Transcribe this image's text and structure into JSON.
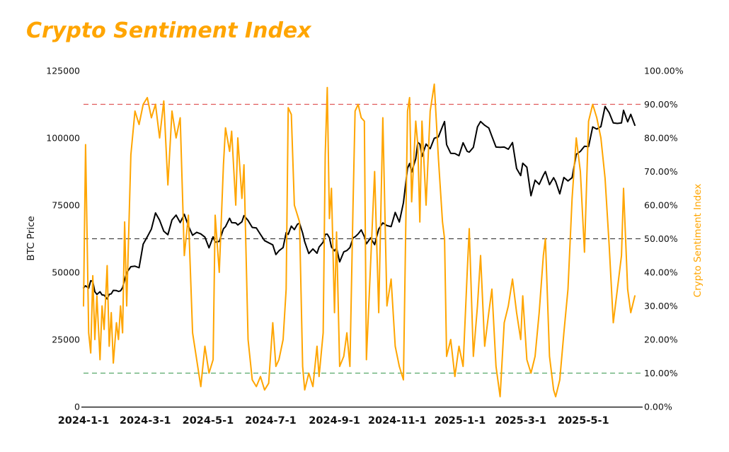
{
  "title": "Crypto Sentiment Index",
  "colors": {
    "title": "#FFA500",
    "price_line": "#000000",
    "sentiment_line": "#FFA500",
    "ref_90": "#e05a5a",
    "ref_50": "#444444",
    "ref_10": "#55a868",
    "axis_line": "#000000",
    "tick_text": "#111111"
  },
  "chart_data": {
    "type": "line",
    "title": "Crypto Sentiment Index",
    "legend": "none",
    "grid": false,
    "columns": [
      "date",
      "btc_price_usd",
      "sentiment_pct"
    ],
    "y_left": {
      "label": "BTC Price",
      "range": [
        0,
        125000
      ],
      "ticks": [
        0,
        25000,
        50000,
        75000,
        100000,
        125000
      ],
      "tick_labels": [
        "0",
        "25000",
        "50000",
        "75000",
        "100000",
        "125000"
      ]
    },
    "y_right": {
      "label": "Crypto Sentiment Index",
      "range": [
        0,
        100
      ],
      "ticks": [
        0,
        10,
        20,
        30,
        40,
        50,
        60,
        70,
        80,
        90,
        100
      ],
      "tick_labels": [
        "0.00%",
        "10.00%",
        "20.00%",
        "30.00%",
        "40.00%",
        "50.00%",
        "60.00%",
        "70.00%",
        "80.00%",
        "90.00%",
        "100.00%"
      ]
    },
    "x_ticks": {
      "dates": [
        "2024-01-01",
        "2024-03-01",
        "2024-05-01",
        "2024-07-01",
        "2024-09-01",
        "2024-11-01",
        "2025-01-01",
        "2025-03-01",
        "2025-05-01"
      ],
      "labels": [
        "2024-1-1",
        "2024-3-1",
        "2024-5-1",
        "2024-7-1",
        "2024-9-1",
        "2024-11-1",
        "2025-1-1",
        "2025-3-1",
        "2025-5-1"
      ]
    },
    "reference_lines": [
      {
        "axis": "right",
        "value": 90,
        "color": "#e05a5a",
        "style": "dashed"
      },
      {
        "axis": "right",
        "value": 50,
        "color": "#444444",
        "style": "dashed"
      },
      {
        "axis": "right",
        "value": 10,
        "color": "#55a868",
        "style": "dashed"
      }
    ],
    "series_meta": [
      {
        "name": "BTC Price",
        "axis": "left",
        "color": "#000000",
        "column": 1
      },
      {
        "name": "Crypto Sentiment Index",
        "axis": "right",
        "color": "#FFA500",
        "column": 2
      }
    ],
    "points": [
      [
        "2024-01-01",
        44200,
        30
      ],
      [
        "2024-01-03",
        45000,
        78
      ],
      [
        "2024-01-06",
        44100,
        22
      ],
      [
        "2024-01-08",
        46900,
        16
      ],
      [
        "2024-01-10",
        46600,
        39
      ],
      [
        "2024-01-12",
        42800,
        20
      ],
      [
        "2024-01-14",
        41800,
        33
      ],
      [
        "2024-01-17",
        42800,
        14
      ],
      [
        "2024-01-19",
        41600,
        30
      ],
      [
        "2024-01-21",
        41500,
        23
      ],
      [
        "2024-01-24",
        40100,
        42
      ],
      [
        "2024-01-26",
        41800,
        18
      ],
      [
        "2024-01-28",
        42000,
        28
      ],
      [
        "2024-01-30",
        43300,
        13
      ],
      [
        "2024-02-02",
        43200,
        25
      ],
      [
        "2024-02-04",
        42900,
        20
      ],
      [
        "2024-02-06",
        43100,
        30
      ],
      [
        "2024-02-08",
        44300,
        22
      ],
      [
        "2024-02-10",
        47200,
        55
      ],
      [
        "2024-02-12",
        49900,
        30
      ],
      [
        "2024-02-16",
        52100,
        75
      ],
      [
        "2024-02-20",
        52300,
        88
      ],
      [
        "2024-02-24",
        51700,
        84
      ],
      [
        "2024-02-28",
        60500,
        90
      ],
      [
        "2024-03-03",
        63200,
        92
      ],
      [
        "2024-03-07",
        66100,
        86
      ],
      [
        "2024-03-11",
        72100,
        90
      ],
      [
        "2024-03-15",
        69400,
        80
      ],
      [
        "2024-03-19",
        65300,
        91
      ],
      [
        "2024-03-23",
        64000,
        66
      ],
      [
        "2024-03-27",
        69500,
        88
      ],
      [
        "2024-03-31",
        71300,
        80
      ],
      [
        "2024-04-04",
        68500,
        86
      ],
      [
        "2024-04-08",
        71600,
        45
      ],
      [
        "2024-04-12",
        67200,
        57
      ],
      [
        "2024-04-16",
        63800,
        22
      ],
      [
        "2024-04-20",
        64900,
        14
      ],
      [
        "2024-04-24",
        64300,
        6
      ],
      [
        "2024-04-28",
        63100,
        18
      ],
      [
        "2024-05-02",
        59100,
        10
      ],
      [
        "2024-05-06",
        63200,
        14
      ],
      [
        "2024-05-08",
        61200,
        57
      ],
      [
        "2024-05-12",
        61500,
        40
      ],
      [
        "2024-05-16",
        66200,
        72
      ],
      [
        "2024-05-18",
        67000,
        83
      ],
      [
        "2024-05-22",
        70100,
        76
      ],
      [
        "2024-05-24",
        68500,
        82
      ],
      [
        "2024-05-28",
        68400,
        60
      ],
      [
        "2024-05-30",
        67600,
        80
      ],
      [
        "2024-06-03",
        68800,
        62
      ],
      [
        "2024-06-05",
        71100,
        72
      ],
      [
        "2024-06-09",
        69300,
        20
      ],
      [
        "2024-06-13",
        66700,
        8
      ],
      [
        "2024-06-17",
        66500,
        6
      ],
      [
        "2024-06-21",
        64100,
        9
      ],
      [
        "2024-06-25",
        61800,
        5
      ],
      [
        "2024-06-29",
        61000,
        7
      ],
      [
        "2024-07-03",
        60200,
        25
      ],
      [
        "2024-07-06",
        56600,
        12
      ],
      [
        "2024-07-09",
        58000,
        14
      ],
      [
        "2024-07-13",
        59200,
        20
      ],
      [
        "2024-07-16",
        64800,
        35
      ],
      [
        "2024-07-18",
        64100,
        89
      ],
      [
        "2024-07-21",
        67200,
        87
      ],
      [
        "2024-07-24",
        65900,
        60
      ],
      [
        "2024-07-27",
        67900,
        57
      ],
      [
        "2024-07-29",
        68300,
        55
      ],
      [
        "2024-08-01",
        64600,
        12
      ],
      [
        "2024-08-03",
        61400,
        5
      ],
      [
        "2024-08-07",
        57000,
        10
      ],
      [
        "2024-08-11",
        58700,
        6
      ],
      [
        "2024-08-15",
        57100,
        18
      ],
      [
        "2024-08-17",
        59400,
        9
      ],
      [
        "2024-08-21",
        61200,
        22
      ],
      [
        "2024-08-23",
        64100,
        75
      ],
      [
        "2024-08-25",
        64200,
        95
      ],
      [
        "2024-08-27",
        62900,
        56
      ],
      [
        "2024-08-29",
        59400,
        65
      ],
      [
        "2024-09-01",
        58000,
        28
      ],
      [
        "2024-09-03",
        59100,
        52
      ],
      [
        "2024-09-06",
        53900,
        12
      ],
      [
        "2024-09-10",
        57600,
        15
      ],
      [
        "2024-09-13",
        58100,
        22
      ],
      [
        "2024-09-16",
        59200,
        12
      ],
      [
        "2024-09-19",
        62800,
        60
      ],
      [
        "2024-09-21",
        63200,
        88
      ],
      [
        "2024-09-24",
        64300,
        90
      ],
      [
        "2024-09-27",
        65800,
        86
      ],
      [
        "2024-09-30",
        63300,
        85
      ],
      [
        "2024-10-02",
        60600,
        14
      ],
      [
        "2024-10-06",
        62800,
        42
      ],
      [
        "2024-10-10",
        60300,
        70
      ],
      [
        "2024-10-14",
        66100,
        28
      ],
      [
        "2024-10-18",
        68400,
        86
      ],
      [
        "2024-10-22",
        67400,
        30
      ],
      [
        "2024-10-26",
        67000,
        38
      ],
      [
        "2024-10-30",
        72300,
        18
      ],
      [
        "2024-11-03",
        68700,
        12
      ],
      [
        "2024-11-07",
        75900,
        8
      ],
      [
        "2024-11-11",
        88700,
        88
      ],
      [
        "2024-11-13",
        90500,
        92
      ],
      [
        "2024-11-15",
        87300,
        61
      ],
      [
        "2024-11-19",
        92300,
        85
      ],
      [
        "2024-11-21",
        98400,
        78
      ],
      [
        "2024-11-23",
        97700,
        55
      ],
      [
        "2024-11-25",
        93100,
        85
      ],
      [
        "2024-11-29",
        97700,
        60
      ],
      [
        "2024-12-03",
        96000,
        88
      ],
      [
        "2024-12-07",
        99900,
        96
      ],
      [
        "2024-12-11",
        100400,
        74
      ],
      [
        "2024-12-15",
        104300,
        55
      ],
      [
        "2024-12-17",
        106100,
        50
      ],
      [
        "2024-12-19",
        97500,
        15
      ],
      [
        "2024-12-23",
        94300,
        20
      ],
      [
        "2024-12-27",
        94200,
        9
      ],
      [
        "2024-12-31",
        93400,
        18
      ],
      [
        "2025-01-04",
        98200,
        12
      ],
      [
        "2025-01-08",
        95000,
        40
      ],
      [
        "2025-01-10",
        94700,
        53
      ],
      [
        "2025-01-14",
        96500,
        15
      ],
      [
        "2025-01-18",
        104100,
        30
      ],
      [
        "2025-01-21",
        106100,
        45
      ],
      [
        "2025-01-25",
        104700,
        18
      ],
      [
        "2025-01-29",
        103700,
        28
      ],
      [
        "2025-02-01",
        100600,
        35
      ],
      [
        "2025-02-05",
        96600,
        12
      ],
      [
        "2025-02-09",
        96500,
        3
      ],
      [
        "2025-02-13",
        96600,
        25
      ],
      [
        "2025-02-17",
        95800,
        30
      ],
      [
        "2025-02-21",
        98300,
        38
      ],
      [
        "2025-02-25",
        88600,
        28
      ],
      [
        "2025-03-01",
        86000,
        20
      ],
      [
        "2025-03-03",
        90600,
        33
      ],
      [
        "2025-03-07",
        89100,
        14
      ],
      [
        "2025-03-11",
        78500,
        10
      ],
      [
        "2025-03-15",
        84300,
        15
      ],
      [
        "2025-03-19",
        82700,
        28
      ],
      [
        "2025-03-23",
        86100,
        45
      ],
      [
        "2025-03-25",
        87500,
        50
      ],
      [
        "2025-03-29",
        82600,
        15
      ],
      [
        "2025-04-02",
        85200,
        5
      ],
      [
        "2025-04-04",
        83800,
        3
      ],
      [
        "2025-04-08",
        79200,
        8
      ],
      [
        "2025-04-12",
        85300,
        22
      ],
      [
        "2025-04-16",
        84000,
        35
      ],
      [
        "2025-04-20",
        85200,
        62
      ],
      [
        "2025-04-24",
        93900,
        80
      ],
      [
        "2025-04-28",
        95000,
        70
      ],
      [
        "2025-05-02",
        96900,
        46
      ],
      [
        "2025-05-06",
        96800,
        85
      ],
      [
        "2025-05-10",
        104100,
        90
      ],
      [
        "2025-05-14",
        103300,
        86
      ],
      [
        "2025-05-18",
        104200,
        80
      ],
      [
        "2025-05-22",
        111700,
        68
      ],
      [
        "2025-05-26",
        109400,
        48
      ],
      [
        "2025-05-30",
        105600,
        25
      ],
      [
        "2025-06-03",
        105400,
        35
      ],
      [
        "2025-06-07",
        105600,
        45
      ],
      [
        "2025-06-09",
        110300,
        65
      ],
      [
        "2025-06-13",
        106000,
        35
      ],
      [
        "2025-06-16",
        108800,
        28
      ],
      [
        "2025-06-20",
        104700,
        33
      ]
    ]
  }
}
